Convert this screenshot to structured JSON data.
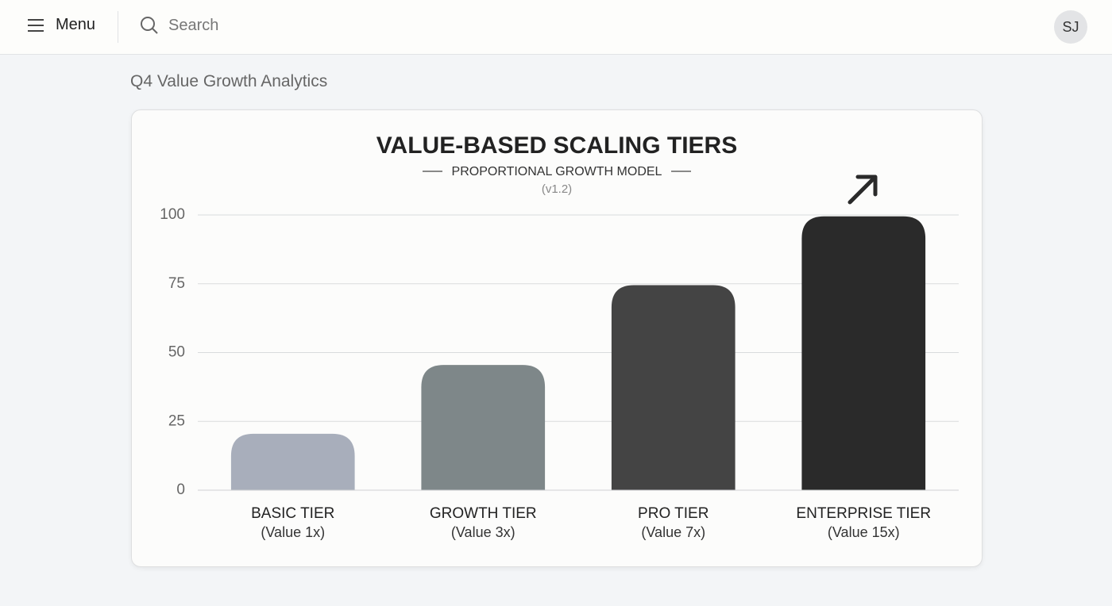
{
  "header": {
    "menu": "Menu",
    "search": "Search",
    "avatar": "SJ"
  },
  "page_title": "Q4 Value Growth Analytics",
  "chart_data": {
    "type": "bar",
    "title": "VALUE-BASED SCALING TIERS",
    "subtitle": "PROPORTIONAL GROWTH MODEL",
    "version": "(v1.2)",
    "categories": [
      "BASIC TIER",
      "GROWTH TIER",
      "PRO TIER",
      "ENTERPRISE TIER"
    ],
    "category_sublabels": [
      "(Value 1x)",
      "(Value 3x)",
      "(Value 7x)",
      "(Value 15x)"
    ],
    "values": [
      20.5,
      45.5,
      74.5,
      99.5
    ],
    "colors": [
      "#a8aebb",
      "#7e8789",
      "#444444",
      "#2a2a2a"
    ],
    "ylim": [
      0,
      100
    ],
    "yticks": [
      0,
      25,
      50,
      75,
      100
    ],
    "grid": true
  }
}
